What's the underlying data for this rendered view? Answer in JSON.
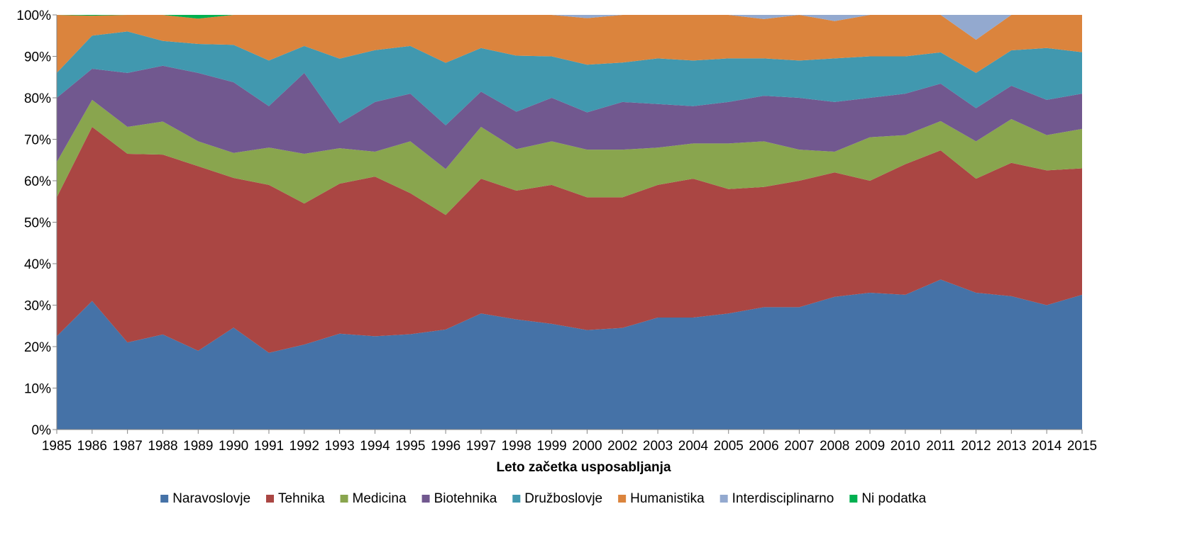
{
  "chart_data": {
    "type": "area",
    "stacked": true,
    "percent": true,
    "title": "",
    "xlabel": "Leto začetka usposabljanja",
    "ylabel": "",
    "ylim": [
      0,
      100
    ],
    "yticks": [
      "0%",
      "10%",
      "20%",
      "30%",
      "40%",
      "50%",
      "60%",
      "70%",
      "80%",
      "90%",
      "100%"
    ],
    "grid": false,
    "legend_position": "bottom",
    "categories": [
      "1985",
      "1986",
      "1987",
      "1988",
      "1989",
      "1990",
      "1991",
      "1992",
      "1993",
      "1994",
      "1995",
      "1996",
      "1997",
      "1998",
      "1999",
      "2000",
      "2002",
      "2003",
      "2004",
      "2005",
      "2006",
      "2007",
      "2008",
      "2009",
      "2010",
      "2011",
      "2012",
      "2013",
      "2014",
      "2015"
    ],
    "series": [
      {
        "name": "Naravoslovje",
        "color": "#4572A7",
        "values": [
          22.5,
          31,
          21,
          23,
          19,
          24.5,
          18.5,
          20.5,
          23,
          22.5,
          23,
          24,
          28,
          26.5,
          25.5,
          24,
          24.5,
          27,
          27,
          28,
          29.5,
          29.5,
          32,
          33,
          32.5,
          36,
          33,
          32,
          30,
          32.5
        ]
      },
      {
        "name": "Tehnika",
        "color": "#AA4643",
        "values": [
          33.5,
          42,
          45.5,
          43.5,
          44.5,
          36,
          40.5,
          34,
          36,
          38.5,
          34,
          27.5,
          32.5,
          31,
          33.5,
          32,
          31.5,
          32,
          33.5,
          30,
          29,
          30.5,
          30,
          27,
          31.5,
          31,
          27.5,
          32,
          32.5,
          30.5
        ]
      },
      {
        "name": "Medicina",
        "color": "#89A54E",
        "values": [
          8.5,
          6.5,
          6.5,
          8,
          6,
          6,
          9,
          12,
          8.5,
          6,
          12.5,
          11,
          12.5,
          10,
          10.5,
          11.5,
          11.5,
          9,
          8.5,
          11,
          11,
          7.5,
          5,
          10.5,
          7,
          7,
          9,
          10.5,
          8.5,
          9.5
        ]
      },
      {
        "name": "Biotehnika",
        "color": "#71588F",
        "values": [
          15.5,
          7.5,
          13,
          13.5,
          16.5,
          17,
          10,
          19.5,
          6,
          12,
          11.5,
          10.5,
          8.5,
          9,
          10.5,
          9,
          11.5,
          10.5,
          9,
          10,
          11,
          12.5,
          12,
          9.5,
          10,
          9,
          8,
          8,
          8.5,
          8.5
        ]
      },
      {
        "name": "Družboslovje",
        "color": "#4198AF",
        "values": [
          6,
          8,
          10,
          6,
          7,
          9,
          11,
          6.5,
          15.5,
          12.5,
          11.5,
          15,
          10.5,
          13.5,
          10,
          11.5,
          9.5,
          11,
          11,
          10.5,
          9,
          9,
          10.5,
          10,
          9,
          7.5,
          8.5,
          8.5,
          12.5,
          10
        ]
      },
      {
        "name": "Humanistika",
        "color": "#DB843D",
        "values": [
          14,
          4.8,
          4,
          6.3,
          6.1,
          7.2,
          11,
          7.5,
          10.5,
          8.5,
          7.5,
          11.5,
          8,
          9.8,
          10,
          11.2,
          11.5,
          10.5,
          11,
          10.5,
          9.5,
          11,
          9,
          10,
          10,
          9,
          8,
          8.5,
          8,
          9
        ]
      },
      {
        "name": "Interdisciplinarno",
        "color": "#93A9CF",
        "values": [
          0,
          0,
          0,
          0,
          0,
          0,
          0,
          0,
          0,
          0,
          0,
          0,
          0,
          0,
          0,
          0.8,
          0,
          0,
          0,
          0,
          1,
          0,
          1.5,
          0,
          0,
          0,
          6,
          0,
          0,
          0
        ]
      },
      {
        "name": "Ni podatka",
        "color": "#00B050",
        "values": [
          0,
          0.2,
          0,
          0,
          0.9,
          0,
          0,
          0,
          0,
          0,
          0,
          0,
          0,
          0,
          0,
          0,
          0,
          0,
          0,
          0,
          0,
          0,
          0,
          0,
          0,
          0,
          0,
          0,
          0,
          0
        ]
      }
    ]
  }
}
